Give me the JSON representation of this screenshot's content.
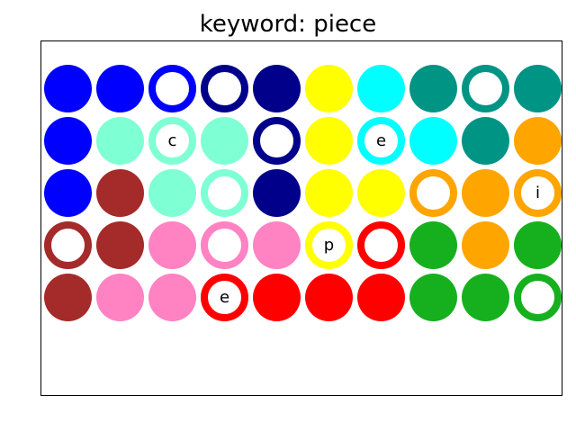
{
  "title": "keyword: piece",
  "colors": {
    "blue": "#0000ff",
    "navy": "#00008b",
    "yellow": "#ffff00",
    "cyan": "#00ffff",
    "teal": "#009485",
    "aquamarine": "#7fffd4",
    "orange": "#ffa500",
    "brown": "#a52a2a",
    "pink": "#ff82c3",
    "red": "#ff0000",
    "green": "#16b01e"
  },
  "grid": [
    [
      {
        "color": "blue",
        "style": "filled",
        "letter": ""
      },
      {
        "color": "blue",
        "style": "filled",
        "letter": ""
      },
      {
        "color": "blue",
        "style": "ring",
        "letter": ""
      },
      {
        "color": "navy",
        "style": "ring",
        "letter": ""
      },
      {
        "color": "navy",
        "style": "filled",
        "letter": ""
      },
      {
        "color": "yellow",
        "style": "filled",
        "letter": ""
      },
      {
        "color": "cyan",
        "style": "filled",
        "letter": ""
      },
      {
        "color": "teal",
        "style": "filled",
        "letter": ""
      },
      {
        "color": "teal",
        "style": "ring",
        "letter": ""
      },
      {
        "color": "teal",
        "style": "filled",
        "letter": ""
      }
    ],
    [
      {
        "color": "blue",
        "style": "filled",
        "letter": ""
      },
      {
        "color": "aquamarine",
        "style": "filled",
        "letter": ""
      },
      {
        "color": "aquamarine",
        "style": "ring",
        "letter": "c"
      },
      {
        "color": "aquamarine",
        "style": "filled",
        "letter": ""
      },
      {
        "color": "navy",
        "style": "ring",
        "letter": ""
      },
      {
        "color": "yellow",
        "style": "filled",
        "letter": ""
      },
      {
        "color": "cyan",
        "style": "ring",
        "letter": "e"
      },
      {
        "color": "cyan",
        "style": "filled",
        "letter": ""
      },
      {
        "color": "teal",
        "style": "filled",
        "letter": ""
      },
      {
        "color": "orange",
        "style": "filled",
        "letter": ""
      }
    ],
    [
      {
        "color": "blue",
        "style": "filled",
        "letter": ""
      },
      {
        "color": "brown",
        "style": "filled",
        "letter": ""
      },
      {
        "color": "aquamarine",
        "style": "filled",
        "letter": ""
      },
      {
        "color": "aquamarine",
        "style": "ring",
        "letter": ""
      },
      {
        "color": "navy",
        "style": "filled",
        "letter": ""
      },
      {
        "color": "yellow",
        "style": "filled",
        "letter": ""
      },
      {
        "color": "yellow",
        "style": "filled",
        "letter": ""
      },
      {
        "color": "orange",
        "style": "ring",
        "letter": ""
      },
      {
        "color": "orange",
        "style": "filled",
        "letter": ""
      },
      {
        "color": "orange",
        "style": "ring",
        "letter": "i"
      }
    ],
    [
      {
        "color": "brown",
        "style": "ring",
        "letter": ""
      },
      {
        "color": "brown",
        "style": "filled",
        "letter": ""
      },
      {
        "color": "pink",
        "style": "filled",
        "letter": ""
      },
      {
        "color": "pink",
        "style": "ring",
        "letter": ""
      },
      {
        "color": "pink",
        "style": "filled",
        "letter": ""
      },
      {
        "color": "yellow",
        "style": "ring",
        "letter": "p"
      },
      {
        "color": "red",
        "style": "ring",
        "letter": ""
      },
      {
        "color": "green",
        "style": "filled",
        "letter": ""
      },
      {
        "color": "orange",
        "style": "filled",
        "letter": ""
      },
      {
        "color": "green",
        "style": "filled",
        "letter": ""
      }
    ],
    [
      {
        "color": "brown",
        "style": "filled",
        "letter": ""
      },
      {
        "color": "pink",
        "style": "filled",
        "letter": ""
      },
      {
        "color": "pink",
        "style": "filled",
        "letter": ""
      },
      {
        "color": "red",
        "style": "ring",
        "letter": "e"
      },
      {
        "color": "red",
        "style": "filled",
        "letter": ""
      },
      {
        "color": "red",
        "style": "filled",
        "letter": ""
      },
      {
        "color": "red",
        "style": "filled",
        "letter": ""
      },
      {
        "color": "green",
        "style": "filled",
        "letter": ""
      },
      {
        "color": "green",
        "style": "filled",
        "letter": ""
      },
      {
        "color": "green",
        "style": "ring",
        "letter": ""
      }
    ]
  ]
}
